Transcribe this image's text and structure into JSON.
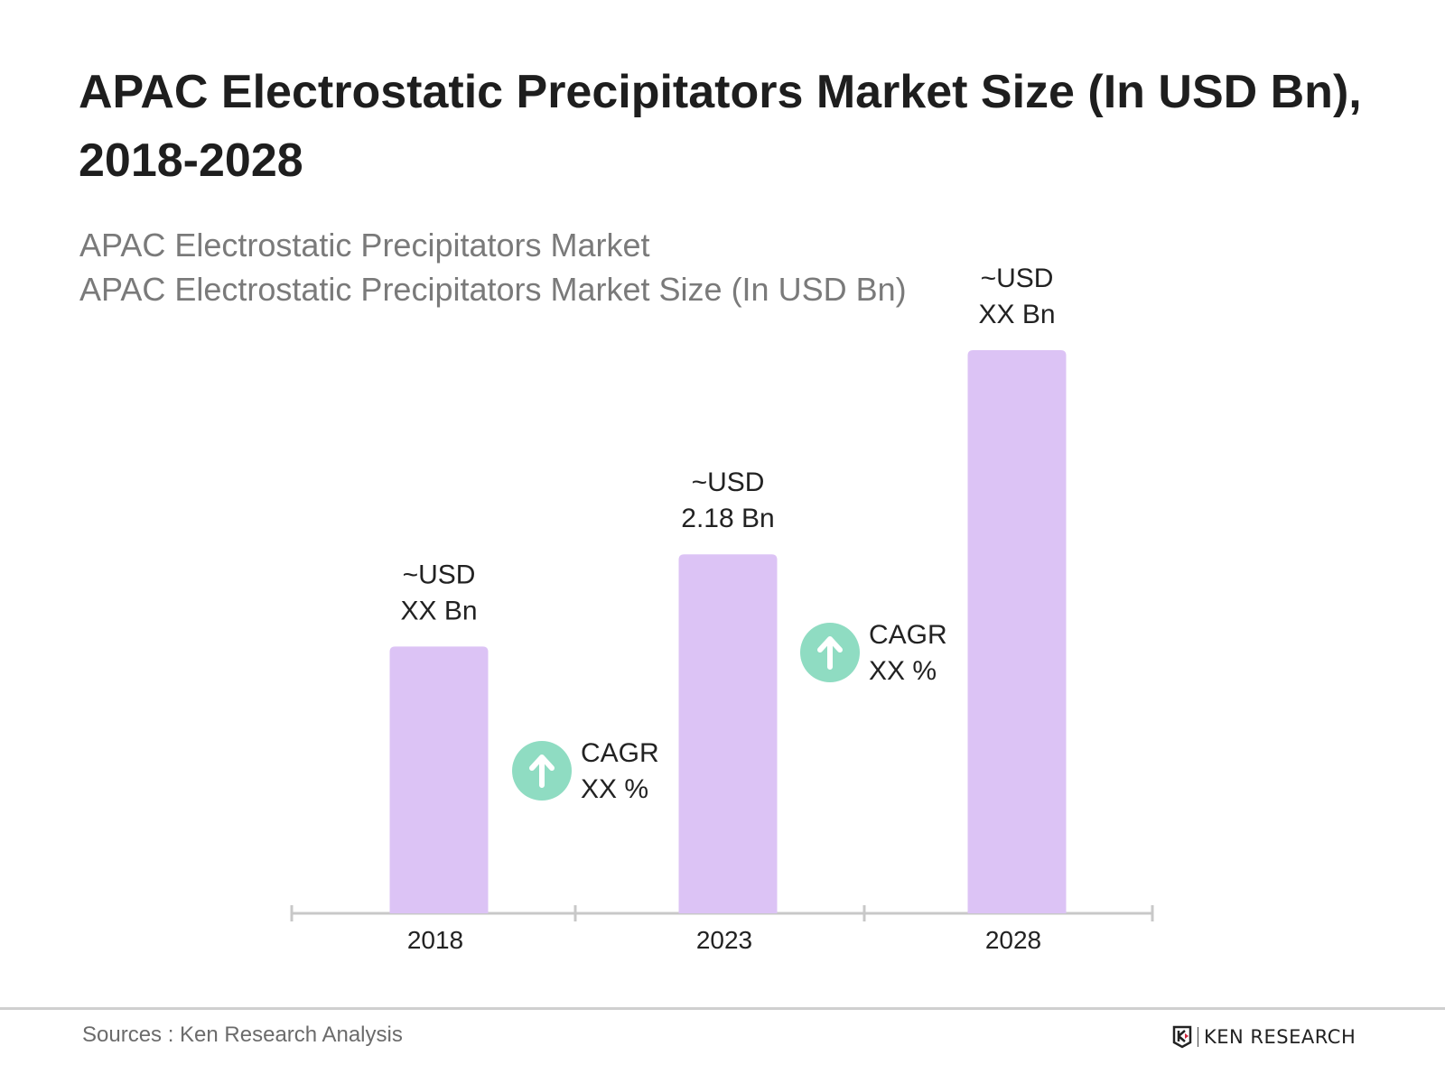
{
  "header": {
    "title": "APAC Electrostatic Precipitators Market Size (In USD Bn), 2018-2028",
    "subtitle_1": "APAC Electrostatic Precipitators Market",
    "subtitle_2": "APAC Electrostatic Precipitators Market Size (In USD Bn)"
  },
  "chart_data": {
    "type": "bar",
    "categories": [
      "2018",
      "2023",
      "2028"
    ],
    "values": [
      1.62,
      2.18,
      3.42
    ],
    "data_labels": [
      [
        "~USD",
        "XX Bn"
      ],
      [
        "~USD",
        "2.18 Bn"
      ],
      [
        "~USD",
        "XX Bn"
      ]
    ],
    "annotations": [
      {
        "between": [
          "2018",
          "2023"
        ],
        "label": [
          "CAGR",
          "XX %"
        ],
        "icon": "arrow-up-icon"
      },
      {
        "between": [
          "2023",
          "2028"
        ],
        "label": [
          "CAGR",
          "XX %"
        ],
        "icon": "arrow-up-icon"
      }
    ],
    "ylim": [
      0,
      3.42
    ],
    "grid": false,
    "colors": {
      "bar": "#dcc3f5",
      "cagr_circle": "#8fdcc2",
      "axis": "#c8c8c8",
      "label": "#222222"
    }
  },
  "footer": {
    "sources": "Sources : Ken Research Analysis",
    "logo_text": "KEN RESEARCH"
  }
}
